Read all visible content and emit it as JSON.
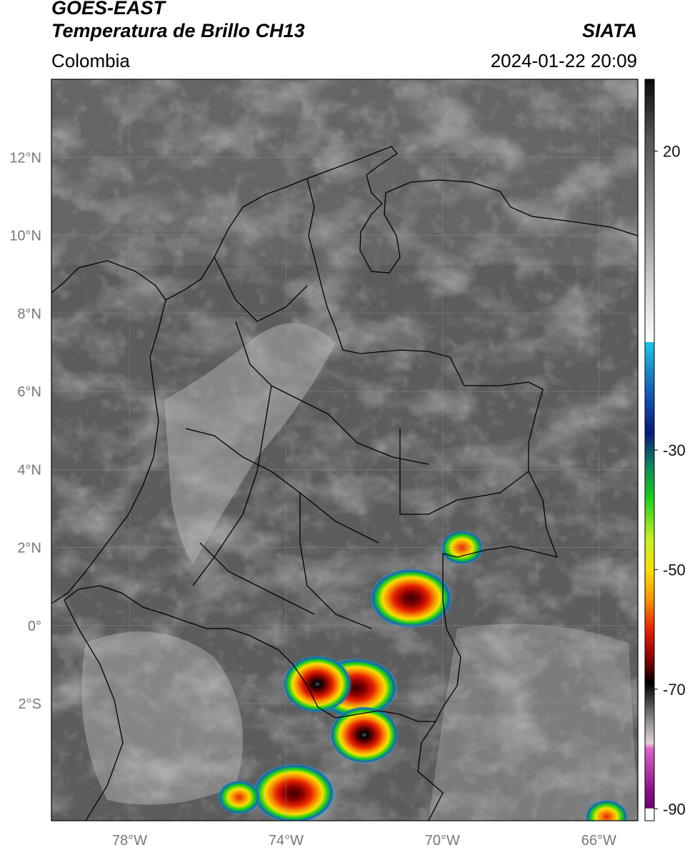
{
  "header": {
    "satellite": "GOES-EAST",
    "product": "Temperatura de Brillo CH13",
    "region": "Colombia",
    "source": "SIATA",
    "datetime": "2024-01-22 20:09"
  },
  "map": {
    "lon_range": [
      -80,
      -65
    ],
    "lat_range": [
      -5,
      14
    ],
    "lon_ticks": [
      {
        "value": -78,
        "label": "78°W"
      },
      {
        "value": -74,
        "label": "74°W"
      },
      {
        "value": -70,
        "label": "70°W"
      },
      {
        "value": -66,
        "label": "66°W"
      }
    ],
    "lat_ticks": [
      {
        "value": 12,
        "label": "12°N"
      },
      {
        "value": 10,
        "label": "10°N"
      },
      {
        "value": 8,
        "label": "8°N"
      },
      {
        "value": 6,
        "label": "6°N"
      },
      {
        "value": 4,
        "label": "4°N"
      },
      {
        "value": 2,
        "label": "2°N"
      },
      {
        "value": 0,
        "label": "0°"
      },
      {
        "value": -2,
        "label": "2°S"
      }
    ],
    "grid": true,
    "storm_cells": [
      {
        "lon": -72.2,
        "lat": -1.6,
        "intensity": "cold"
      },
      {
        "lon": -73.2,
        "lat": -1.5,
        "intensity": "very-cold"
      },
      {
        "lon": -72.0,
        "lat": -2.8,
        "intensity": "very-cold"
      },
      {
        "lon": -70.8,
        "lat": 0.7,
        "intensity": "cold"
      },
      {
        "lon": -73.8,
        "lat": -4.3,
        "intensity": "cold"
      },
      {
        "lon": -75.2,
        "lat": -4.4,
        "intensity": "moderate"
      },
      {
        "lon": -65.8,
        "lat": -4.9,
        "intensity": "moderate"
      },
      {
        "lon": -69.5,
        "lat": 2.0,
        "intensity": "moderate"
      }
    ]
  },
  "colorbar": {
    "range": [
      -92,
      32
    ],
    "ticks": [
      {
        "value": 20,
        "label": "20"
      },
      {
        "value": -30,
        "label": "-30"
      },
      {
        "value": -50,
        "label": "-50"
      },
      {
        "value": -70,
        "label": "-70"
      },
      {
        "value": -90,
        "label": "-90"
      }
    ],
    "stops": [
      {
        "value": 32,
        "color": "#0a0a0a"
      },
      {
        "value": 22,
        "color": "#555555"
      },
      {
        "value": 8,
        "color": "#909090"
      },
      {
        "value": -4,
        "color": "#d8d8d8"
      },
      {
        "value": -11.9,
        "color": "#ffffff"
      },
      {
        "value": -12,
        "color": "#18c8e8"
      },
      {
        "value": -20,
        "color": "#1560b8"
      },
      {
        "value": -27,
        "color": "#071a80"
      },
      {
        "value": -33,
        "color": "#0e8a5a"
      },
      {
        "value": -38,
        "color": "#18d018"
      },
      {
        "value": -45,
        "color": "#c8f020"
      },
      {
        "value": -50,
        "color": "#f8e000"
      },
      {
        "value": -55,
        "color": "#f89400"
      },
      {
        "value": -60,
        "color": "#e82000"
      },
      {
        "value": -65,
        "color": "#8a0000"
      },
      {
        "value": -69,
        "color": "#000000"
      },
      {
        "value": -75,
        "color": "#888888"
      },
      {
        "value": -79,
        "color": "#e0d0d8"
      },
      {
        "value": -80,
        "color": "#e060c8"
      },
      {
        "value": -87,
        "color": "#8a1088"
      },
      {
        "value": -89.9,
        "color": "#6a0070"
      },
      {
        "value": -90,
        "color": "#ffffff"
      }
    ]
  }
}
